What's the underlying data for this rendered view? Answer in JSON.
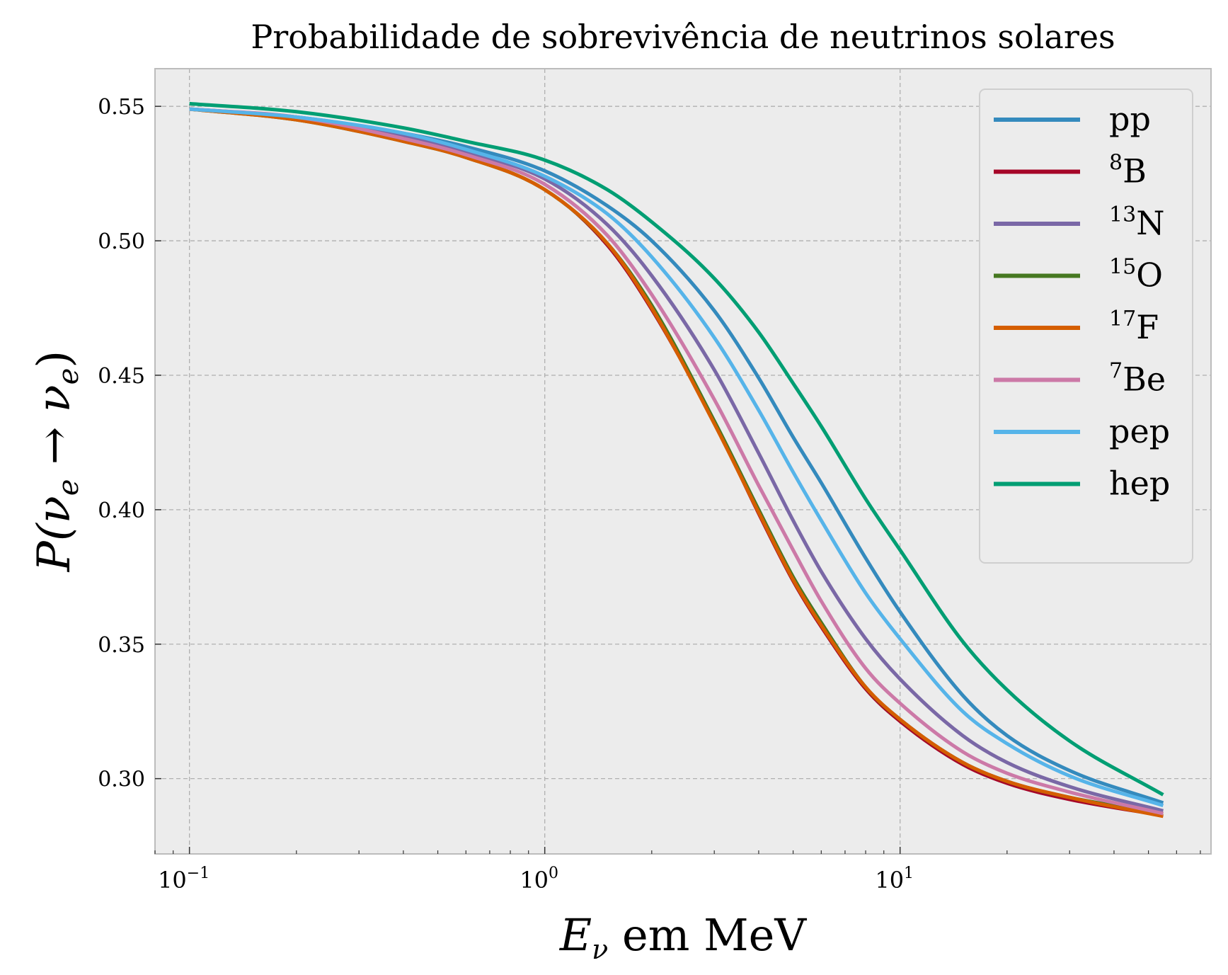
{
  "chart_data": {
    "type": "line",
    "title": "Probabilidade de sobrevivência de neutrinos solares",
    "xlabel": {
      "main": "E",
      "sub": "ν",
      "rest": " em MeV"
    },
    "ylabel": {
      "p": "P(",
      "nu1": "ν",
      "sub1": "e",
      "arrow": " → ",
      "nu2": "ν",
      "sub2": "e",
      "close": ")"
    },
    "x_scale": "log",
    "xlim": [
      0.08,
      75
    ],
    "ylim": [
      0.272,
      0.564
    ],
    "x_ticks": [
      {
        "value": 0.1,
        "base": "10",
        "exp": "−1"
      },
      {
        "value": 1,
        "base": "10",
        "exp": "0"
      },
      {
        "value": 10,
        "base": "10",
        "exp": "1"
      }
    ],
    "y_ticks": [
      {
        "value": 0.3,
        "label": "0.30"
      },
      {
        "value": 0.35,
        "label": "0.35"
      },
      {
        "value": 0.4,
        "label": "0.40"
      },
      {
        "value": 0.45,
        "label": "0.45"
      },
      {
        "value": 0.5,
        "label": "0.50"
      },
      {
        "value": 0.55,
        "label": "0.55"
      }
    ],
    "grid": true,
    "legend_position": "top-right",
    "x": [
      0.1,
      0.2,
      0.4,
      0.6,
      1.0,
      1.5,
      2.0,
      3.0,
      4.0,
      5.0,
      6.0,
      8.0,
      10.0,
      15.0,
      20.0,
      30.0,
      55.0
    ],
    "series": [
      {
        "name": "pp",
        "color": "#348abd",
        "values": [
          0.549,
          0.546,
          0.54,
          0.535,
          0.526,
          0.513,
          0.5,
          0.474,
          0.449,
          0.427,
          0.41,
          0.382,
          0.362,
          0.331,
          0.316,
          0.303,
          0.291
        ]
      },
      {
        "name": "8B",
        "sup": "8",
        "base": "B",
        "color": "#a60628",
        "values": [
          0.549,
          0.545,
          0.537,
          0.531,
          0.519,
          0.498,
          0.474,
          0.432,
          0.398,
          0.373,
          0.356,
          0.333,
          0.321,
          0.305,
          0.298,
          0.292,
          0.286
        ]
      },
      {
        "name": "13N",
        "sup": "13",
        "base": "N",
        "color": "#7a68a6",
        "values": [
          0.549,
          0.546,
          0.539,
          0.533,
          0.523,
          0.506,
          0.487,
          0.452,
          0.421,
          0.396,
          0.377,
          0.352,
          0.337,
          0.316,
          0.306,
          0.297,
          0.288
        ]
      },
      {
        "name": "15O",
        "sup": "15",
        "base": "O",
        "color": "#467821",
        "values": [
          0.549,
          0.545,
          0.537,
          0.531,
          0.519,
          0.499,
          0.476,
          0.433,
          0.4,
          0.375,
          0.358,
          0.334,
          0.322,
          0.306,
          0.299,
          0.293,
          0.287
        ]
      },
      {
        "name": "17F",
        "sup": "17",
        "base": "F",
        "color": "#d55e00",
        "values": [
          0.549,
          0.545,
          0.537,
          0.531,
          0.519,
          0.499,
          0.475,
          0.432,
          0.399,
          0.374,
          0.357,
          0.334,
          0.322,
          0.306,
          0.299,
          0.293,
          0.286
        ]
      },
      {
        "name": "7Be",
        "sup": "7",
        "base": "Be",
        "color": "#cc79a7",
        "values": [
          0.549,
          0.546,
          0.538,
          0.532,
          0.521,
          0.502,
          0.48,
          0.441,
          0.409,
          0.385,
          0.366,
          0.341,
          0.328,
          0.31,
          0.302,
          0.295,
          0.287
        ]
      },
      {
        "name": "pep",
        "color": "#56b4e9",
        "values": [
          0.549,
          0.546,
          0.54,
          0.534,
          0.524,
          0.51,
          0.494,
          0.464,
          0.437,
          0.414,
          0.396,
          0.369,
          0.352,
          0.325,
          0.313,
          0.301,
          0.29
        ]
      },
      {
        "name": "hep",
        "color": "#009e73",
        "values": [
          0.551,
          0.548,
          0.542,
          0.537,
          0.53,
          0.519,
          0.507,
          0.486,
          0.466,
          0.447,
          0.431,
          0.404,
          0.385,
          0.351,
          0.333,
          0.314,
          0.294
        ]
      }
    ]
  },
  "colors": {
    "plot_background": "#ececec",
    "grid": "#b0b0b0",
    "spine": "#bcbcbc"
  }
}
